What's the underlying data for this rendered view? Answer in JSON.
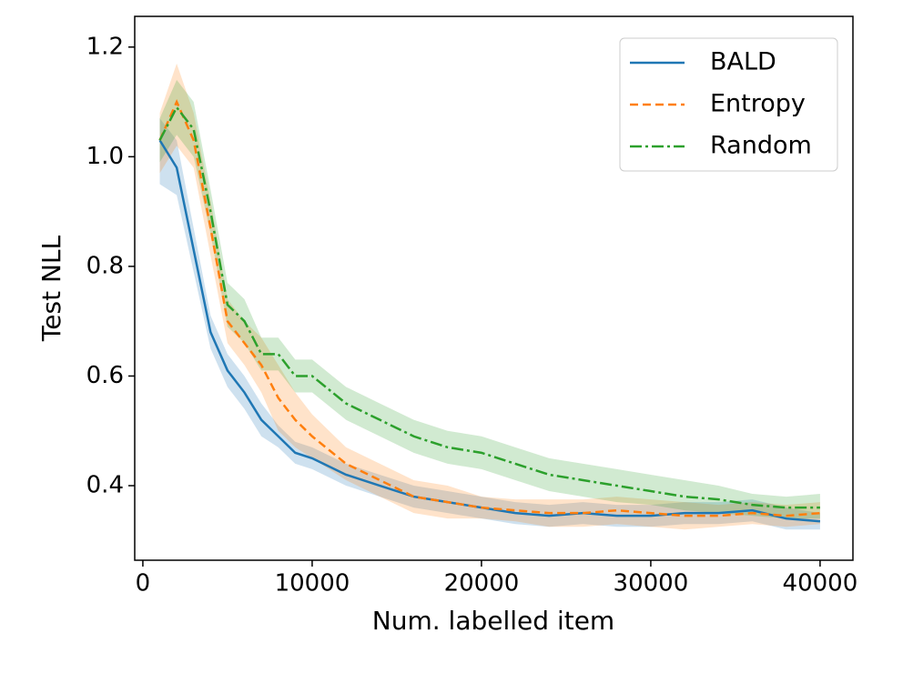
{
  "chart_data": {
    "type": "line",
    "xlabel": "Num. labelled item",
    "ylabel": "Test NLL",
    "x": [
      1000,
      2000,
      3000,
      4000,
      5000,
      6000,
      7000,
      8000,
      9000,
      10000,
      12000,
      14000,
      16000,
      18000,
      20000,
      22000,
      24000,
      26000,
      28000,
      30000,
      32000,
      34000,
      36000,
      38000,
      40000
    ],
    "xlim": [
      -480,
      41940
    ],
    "ylim": [
      0.264,
      1.256
    ],
    "xticks": [
      0,
      10000,
      20000,
      30000,
      40000
    ],
    "yticks": [
      0.4,
      0.6,
      0.8,
      {
        "value": 1.0,
        "label": "1.0"
      },
      1.2
    ],
    "legend": "upper right",
    "series": [
      {
        "name": "BALD",
        "color": "#1f77b4",
        "linestyle": "solid",
        "values": [
          1.03,
          0.98,
          0.83,
          0.68,
          0.61,
          0.57,
          0.52,
          0.49,
          0.46,
          0.45,
          0.42,
          0.4,
          0.38,
          0.37,
          0.36,
          0.35,
          0.345,
          0.35,
          0.345,
          0.345,
          0.35,
          0.35,
          0.355,
          0.34,
          0.335
        ],
        "lower": [
          0.95,
          0.93,
          0.79,
          0.65,
          0.58,
          0.54,
          0.49,
          0.47,
          0.44,
          0.43,
          0.4,
          0.38,
          0.36,
          0.35,
          0.34,
          0.33,
          0.325,
          0.33,
          0.325,
          0.325,
          0.33,
          0.33,
          0.335,
          0.32,
          0.32
        ],
        "upper": [
          1.07,
          1.03,
          0.87,
          0.71,
          0.64,
          0.6,
          0.55,
          0.51,
          0.48,
          0.47,
          0.44,
          0.42,
          0.4,
          0.39,
          0.38,
          0.37,
          0.365,
          0.37,
          0.365,
          0.365,
          0.37,
          0.37,
          0.375,
          0.36,
          0.35
        ]
      },
      {
        "name": "Entropy",
        "color": "#ff7f0e",
        "linestyle": "dashed",
        "values": [
          1.03,
          1.1,
          1.03,
          0.87,
          0.7,
          0.66,
          0.62,
          0.56,
          0.52,
          0.49,
          0.44,
          0.41,
          0.38,
          0.37,
          0.36,
          0.355,
          0.35,
          0.35,
          0.355,
          0.35,
          0.345,
          0.345,
          0.35,
          0.345,
          0.35
        ],
        "lower": [
          0.97,
          1.02,
          0.98,
          0.82,
          0.66,
          0.62,
          0.57,
          0.5,
          0.47,
          0.45,
          0.41,
          0.38,
          0.35,
          0.34,
          0.34,
          0.335,
          0.325,
          0.325,
          0.33,
          0.325,
          0.32,
          0.325,
          0.33,
          0.325,
          0.33
        ],
        "upper": [
          1.08,
          1.17,
          1.08,
          0.92,
          0.74,
          0.7,
          0.67,
          0.62,
          0.57,
          0.53,
          0.47,
          0.44,
          0.41,
          0.4,
          0.38,
          0.375,
          0.375,
          0.375,
          0.38,
          0.375,
          0.37,
          0.365,
          0.37,
          0.365,
          0.37
        ]
      },
      {
        "name": "Random",
        "color": "#2ca02c",
        "linestyle": "dashdot",
        "values": [
          1.03,
          1.09,
          1.05,
          0.9,
          0.73,
          0.7,
          0.64,
          0.64,
          0.6,
          0.6,
          0.55,
          0.52,
          0.49,
          0.47,
          0.46,
          0.44,
          0.42,
          0.41,
          0.4,
          0.39,
          0.38,
          0.375,
          0.365,
          0.36,
          0.36
        ],
        "lower": [
          0.99,
          1.04,
          1.0,
          0.86,
          0.69,
          0.66,
          0.61,
          0.61,
          0.57,
          0.57,
          0.52,
          0.49,
          0.46,
          0.44,
          0.43,
          0.41,
          0.39,
          0.38,
          0.37,
          0.365,
          0.355,
          0.35,
          0.345,
          0.34,
          0.34
        ],
        "upper": [
          1.07,
          1.14,
          1.1,
          0.94,
          0.77,
          0.74,
          0.67,
          0.67,
          0.63,
          0.63,
          0.58,
          0.55,
          0.52,
          0.5,
          0.49,
          0.47,
          0.45,
          0.44,
          0.43,
          0.42,
          0.41,
          0.4,
          0.385,
          0.38,
          0.385
        ]
      }
    ]
  }
}
